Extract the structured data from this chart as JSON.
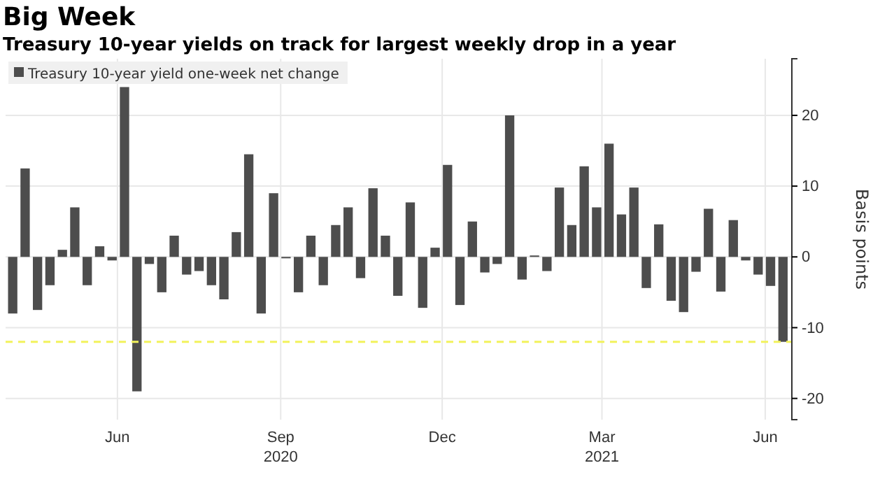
{
  "chart_data": {
    "type": "bar",
    "title": "Big Week",
    "subtitle": "Treasury 10-year yields on track for largest weekly drop in a year",
    "ylabel": "Basis points",
    "x": [
      "2020-04-03",
      "2020-04-10",
      "2020-04-17",
      "2020-04-24",
      "2020-05-01",
      "2020-05-08",
      "2020-05-15",
      "2020-05-22",
      "2020-05-29",
      "2020-06-05",
      "2020-06-12",
      "2020-06-19",
      "2020-06-26",
      "2020-07-03",
      "2020-07-10",
      "2020-07-17",
      "2020-07-24",
      "2020-07-31",
      "2020-08-07",
      "2020-08-14",
      "2020-08-21",
      "2020-08-28",
      "2020-09-04",
      "2020-09-11",
      "2020-09-18",
      "2020-09-25",
      "2020-10-02",
      "2020-10-09",
      "2020-10-16",
      "2020-10-23",
      "2020-10-30",
      "2020-11-06",
      "2020-11-13",
      "2020-11-20",
      "2020-11-27",
      "2020-12-04",
      "2020-12-11",
      "2020-12-18",
      "2020-12-25",
      "2021-01-01",
      "2021-01-08",
      "2021-01-15",
      "2021-01-22",
      "2021-01-29",
      "2021-02-05",
      "2021-02-12",
      "2021-02-19",
      "2021-02-26",
      "2021-03-05",
      "2021-03-12",
      "2021-03-19",
      "2021-03-26",
      "2021-04-02",
      "2021-04-09",
      "2021-04-16",
      "2021-04-23",
      "2021-04-30",
      "2021-05-07",
      "2021-05-14",
      "2021-05-21",
      "2021-05-28",
      "2021-06-04",
      "2021-06-11"
    ],
    "series": [
      {
        "name": "Treasury 10-year yield one-week net change",
        "color": "#4d4d4d",
        "values": [
          -8,
          12.5,
          -7.5,
          -4,
          1,
          7,
          -4,
          1.5,
          -0.5,
          24,
          -19,
          -1,
          -5,
          3,
          -2.5,
          -2,
          -4,
          -6,
          3.5,
          14.5,
          -8,
          9,
          -0.2,
          -5,
          3,
          -4,
          4.5,
          7,
          -3,
          9.7,
          3,
          -5.5,
          7.7,
          -7.2,
          1.3,
          13,
          -6.8,
          5,
          -2.2,
          -1,
          20,
          -3.2,
          0.2,
          -2,
          9.8,
          4.5,
          12.8,
          7,
          16,
          6,
          9.8,
          -4.4,
          4.6,
          -6.2,
          -7.8,
          -2.1,
          6.8,
          -4.9,
          5.2,
          -0.5,
          -2.5,
          -4.1,
          -12
        ]
      }
    ],
    "xlim": [
      "2020-03-30",
      "2021-06-16"
    ],
    "xticks": [
      {
        "value": "2020-06-01",
        "label": "Jun"
      },
      {
        "value": "2020-09-01",
        "label": "Sep\n2020"
      },
      {
        "value": "2020-12-01",
        "label": "Dec"
      },
      {
        "value": "2021-03-01",
        "label": "Mar\n2021"
      },
      {
        "value": "2021-06-01",
        "label": "Jun"
      }
    ],
    "ylim": [
      -23,
      28
    ],
    "yticks": [
      -20,
      -10,
      0,
      10,
      20
    ],
    "ref_lines": [
      {
        "axis": "y",
        "value": -12,
        "color": "#f2f25c",
        "line_style": "dashed"
      }
    ],
    "grid": true,
    "legend": "top left"
  }
}
